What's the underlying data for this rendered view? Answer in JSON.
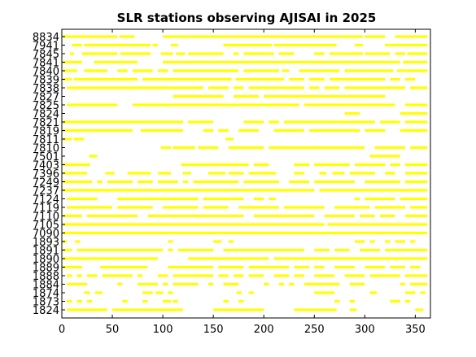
{
  "chart_data": {
    "type": "bar",
    "orientation": "horizontal-segments",
    "title": "SLR stations observing AJISAI in 2025",
    "xlabel": "",
    "ylabel": "",
    "xlim": [
      0,
      365
    ],
    "xticks": [
      0,
      50,
      100,
      150,
      200,
      250,
      300,
      350
    ],
    "bar_color": "#ffff00",
    "stations": [
      {
        "label": "8834",
        "segments": [
          [
            1,
            55
          ],
          [
            57,
            72
          ],
          [
            100,
            298
          ],
          [
            300,
            320
          ],
          [
            330,
            362
          ]
        ]
      },
      {
        "label": "7941",
        "segments": [
          [
            10,
            20
          ],
          [
            22,
            88
          ],
          [
            90,
            95
          ],
          [
            108,
            115
          ],
          [
            160,
            208
          ],
          [
            210,
            272
          ],
          [
            290,
            298
          ],
          [
            320,
            362
          ]
        ]
      },
      {
        "label": "7845",
        "segments": [
          [
            8,
            12
          ],
          [
            20,
            55
          ],
          [
            58,
            88
          ],
          [
            98,
            110
          ],
          [
            113,
            122
          ],
          [
            125,
            160
          ],
          [
            170,
            175
          ],
          [
            180,
            210
          ],
          [
            215,
            230
          ],
          [
            250,
            260
          ],
          [
            265,
            298
          ],
          [
            300,
            325
          ],
          [
            330,
            340
          ],
          [
            342,
            362
          ]
        ]
      },
      {
        "label": "7841",
        "segments": [
          [
            1,
            20
          ],
          [
            32,
            75
          ],
          [
            100,
            335
          ],
          [
            338,
            362
          ]
        ]
      },
      {
        "label": "7840",
        "segments": [
          [
            1,
            15
          ],
          [
            22,
            45
          ],
          [
            55,
            65
          ],
          [
            70,
            90
          ],
          [
            95,
            105
          ],
          [
            110,
            175
          ],
          [
            180,
            215
          ],
          [
            218,
            225
          ],
          [
            235,
            275
          ],
          [
            280,
            328
          ],
          [
            332,
            362
          ]
        ]
      },
      {
        "label": "7839",
        "segments": [
          [
            1,
            10
          ],
          [
            12,
            75
          ],
          [
            80,
            168
          ],
          [
            172,
            220
          ],
          [
            225,
            240
          ],
          [
            245,
            260
          ],
          [
            265,
            320
          ],
          [
            325,
            335
          ],
          [
            340,
            350
          ]
        ]
      },
      {
        "label": "7838",
        "segments": [
          [
            5,
            140
          ],
          [
            145,
            165
          ],
          [
            170,
            180
          ],
          [
            185,
            240
          ],
          [
            245,
            255
          ],
          [
            260,
            275
          ],
          [
            280,
            340
          ],
          [
            345,
            362
          ]
        ]
      },
      {
        "label": "7827",
        "segments": [
          [
            110,
            160
          ],
          [
            170,
            195
          ],
          [
            200,
            320
          ]
        ]
      },
      {
        "label": "7825",
        "segments": [
          [
            5,
            55
          ],
          [
            70,
            235
          ],
          [
            240,
            330
          ],
          [
            340,
            362
          ]
        ]
      },
      {
        "label": "7824",
        "segments": [
          [
            280,
            295
          ],
          [
            335,
            362
          ]
        ]
      },
      {
        "label": "7821",
        "segments": [
          [
            1,
            120
          ],
          [
            125,
            150
          ],
          [
            180,
            200
          ],
          [
            205,
            215
          ],
          [
            220,
            310
          ],
          [
            315,
            335
          ],
          [
            340,
            362
          ]
        ]
      },
      {
        "label": "7819",
        "segments": [
          [
            1,
            70
          ],
          [
            78,
            120
          ],
          [
            140,
            150
          ],
          [
            155,
            165
          ],
          [
            175,
            195
          ],
          [
            210,
            240
          ],
          [
            245,
            295
          ],
          [
            300,
            320
          ],
          [
            335,
            362
          ]
        ]
      },
      {
        "label": "7811",
        "segments": [
          [
            1,
            10
          ],
          [
            12,
            22
          ],
          [
            162,
            170
          ]
        ]
      },
      {
        "label": "7810",
        "segments": [
          [
            98,
            108
          ],
          [
            110,
            132
          ],
          [
            135,
            155
          ],
          [
            165,
            200
          ],
          [
            205,
            300
          ],
          [
            310,
            340
          ],
          [
            345,
            362
          ]
        ]
      },
      {
        "label": "7501",
        "segments": [
          [
            27,
            35
          ],
          [
            305,
            335
          ]
        ]
      },
      {
        "label": "7403",
        "segments": [
          [
            1,
            28
          ],
          [
            118,
            185
          ],
          [
            190,
            205
          ],
          [
            230,
            245
          ],
          [
            250,
            285
          ],
          [
            290,
            320
          ],
          [
            325,
            335
          ],
          [
            340,
            362
          ]
        ]
      },
      {
        "label": "7396",
        "segments": [
          [
            1,
            25
          ],
          [
            43,
            52
          ],
          [
            65,
            88
          ],
          [
            95,
            108
          ],
          [
            120,
            128
          ],
          [
            145,
            162
          ],
          [
            165,
            180
          ],
          [
            185,
            212
          ],
          [
            230,
            240
          ],
          [
            255,
            262
          ],
          [
            268,
            280
          ],
          [
            285,
            310
          ],
          [
            320,
            330
          ],
          [
            340,
            362
          ]
        ]
      },
      {
        "label": "7249",
        "segments": [
          [
            1,
            30
          ],
          [
            35,
            40
          ],
          [
            45,
            70
          ],
          [
            75,
            90
          ],
          [
            95,
            115
          ],
          [
            120,
            125
          ],
          [
            130,
            175
          ],
          [
            180,
            215
          ],
          [
            225,
            245
          ],
          [
            250,
            290
          ],
          [
            300,
            335
          ],
          [
            340,
            362
          ]
        ]
      },
      {
        "label": "7237",
        "segments": [
          [
            1,
            250
          ],
          [
            255,
            362
          ]
        ]
      },
      {
        "label": "7124",
        "segments": [
          [
            5,
            35
          ],
          [
            55,
            135
          ],
          [
            140,
            180
          ],
          [
            190,
            200
          ],
          [
            205,
            212
          ],
          [
            290,
            295
          ],
          [
            300,
            330
          ],
          [
            335,
            362
          ]
        ]
      },
      {
        "label": "7119",
        "segments": [
          [
            5,
            50
          ],
          [
            55,
            90
          ],
          [
            100,
            135
          ],
          [
            140,
            165
          ],
          [
            175,
            215
          ],
          [
            220,
            260
          ],
          [
            270,
            305
          ],
          [
            310,
            340
          ],
          [
            345,
            362
          ]
        ]
      },
      {
        "label": "7110",
        "segments": [
          [
            1,
            20
          ],
          [
            25,
            75
          ],
          [
            85,
            180
          ],
          [
            190,
            250
          ],
          [
            260,
            290
          ],
          [
            295,
            310
          ],
          [
            315,
            330
          ],
          [
            340,
            362
          ]
        ]
      },
      {
        "label": "7105",
        "segments": [
          [
            1,
            260
          ],
          [
            263,
            362
          ]
        ]
      },
      {
        "label": "7090",
        "segments": [
          [
            1,
            362
          ]
        ]
      },
      {
        "label": "1893",
        "segments": [
          [
            1,
            5
          ],
          [
            13,
            18
          ],
          [
            105,
            110
          ],
          [
            150,
            158
          ],
          [
            165,
            170
          ],
          [
            290,
            300
          ],
          [
            305,
            310
          ],
          [
            320,
            325
          ],
          [
            330,
            340
          ],
          [
            345,
            350
          ]
        ]
      },
      {
        "label": "1891",
        "segments": [
          [
            1,
            10
          ],
          [
            15,
            100
          ],
          [
            105,
            110
          ],
          [
            115,
            150
          ],
          [
            160,
            240
          ],
          [
            250,
            265
          ],
          [
            270,
            285
          ],
          [
            295,
            315
          ],
          [
            320,
            362
          ]
        ]
      },
      {
        "label": "1890",
        "segments": [
          [
            1,
            95
          ],
          [
            125,
            205
          ],
          [
            210,
            362
          ]
        ]
      },
      {
        "label": "1889",
        "segments": [
          [
            1,
            20
          ],
          [
            38,
            85
          ],
          [
            105,
            150
          ],
          [
            155,
            180
          ],
          [
            185,
            225
          ],
          [
            230,
            245
          ],
          [
            250,
            260
          ],
          [
            270,
            290
          ],
          [
            300,
            320
          ],
          [
            325,
            340
          ],
          [
            345,
            355
          ]
        ]
      },
      {
        "label": "1888",
        "segments": [
          [
            5,
            10
          ],
          [
            15,
            20
          ],
          [
            25,
            35
          ],
          [
            40,
            70
          ],
          [
            75,
            80
          ],
          [
            95,
            105
          ],
          [
            110,
            150
          ],
          [
            155,
            165
          ],
          [
            170,
            180
          ],
          [
            185,
            200
          ],
          [
            210,
            225
          ],
          [
            230,
            240
          ],
          [
            250,
            270
          ],
          [
            280,
            300
          ],
          [
            305,
            335
          ],
          [
            340,
            362
          ]
        ]
      },
      {
        "label": "1884",
        "segments": [
          [
            5,
            25
          ],
          [
            55,
            60
          ],
          [
            75,
            95
          ],
          [
            100,
            105
          ],
          [
            110,
            135
          ],
          [
            145,
            150
          ],
          [
            160,
            175
          ],
          [
            200,
            205
          ],
          [
            215,
            220
          ],
          [
            225,
            230
          ],
          [
            240,
            275
          ],
          [
            285,
            300
          ],
          [
            335,
            340
          ],
          [
            345,
            362
          ]
        ]
      },
      {
        "label": "1874",
        "segments": [
          [
            22,
            28
          ],
          [
            33,
            40
          ],
          [
            80,
            90
          ],
          [
            93,
            100
          ],
          [
            105,
            110
          ],
          [
            173,
            178
          ],
          [
            185,
            190
          ],
          [
            250,
            270
          ],
          [
            305,
            312
          ],
          [
            340,
            350
          ],
          [
            355,
            360
          ]
        ]
      },
      {
        "label": "1873",
        "segments": [
          [
            5,
            10
          ],
          [
            15,
            20
          ],
          [
            25,
            30
          ],
          [
            60,
            65
          ],
          [
            80,
            85
          ],
          [
            100,
            108
          ],
          [
            110,
            115
          ],
          [
            160,
            165
          ],
          [
            175,
            180
          ],
          [
            270,
            275
          ],
          [
            285,
            290
          ],
          [
            325,
            335
          ],
          [
            340,
            345
          ]
        ]
      },
      {
        "label": "1824",
        "segments": [
          [
            5,
            45
          ],
          [
            50,
            120
          ],
          [
            150,
            200
          ],
          [
            230,
            272
          ],
          [
            285,
            292
          ],
          [
            350,
            358
          ]
        ]
      }
    ]
  }
}
